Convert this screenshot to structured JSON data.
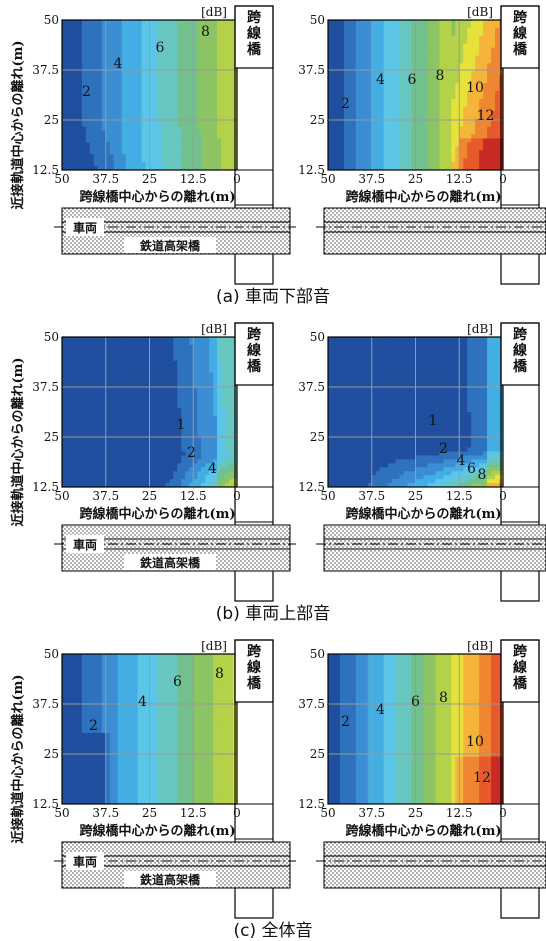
{
  "chart_data": {
    "type": "heatmap",
    "xlabel": "跨線橋中心からの離れ(m)",
    "ylabel": "近接軌道中心からの離れ(m)",
    "unit": "[dB]",
    "xticks": [
      "50",
      "37.5",
      "25",
      "12.5",
      "0"
    ],
    "yticks": [
      "50",
      "37.5",
      "25",
      "12.5"
    ],
    "xlim": [
      50,
      0
    ],
    "ylim": [
      12.5,
      50
    ],
    "bridge_label": [
      "跨",
      "線",
      "橋"
    ],
    "vehicle_label": "車両",
    "viaduct_label": "鉄道高架橋",
    "levels": [
      0,
      1,
      2,
      3,
      4,
      5,
      6,
      7,
      8,
      9,
      10,
      11,
      12,
      13
    ],
    "colors": [
      "#1f4f9e",
      "#2e72bd",
      "#3b8ed3",
      "#43aee3",
      "#5cc6e8",
      "#67c7c0",
      "#73c08f",
      "#8cc464",
      "#b3d24a",
      "#e7e23a",
      "#f4b53a",
      "#ef8732",
      "#e65a2b",
      "#c92a25"
    ],
    "groups": [
      {
        "caption": "(a) 車両下部音",
        "panels": [
          {
            "side": "left",
            "contours": [
              {
                "label": "2",
                "x": 43,
                "y": 31
              },
              {
                "label": "4",
                "x": 34,
                "y": 38
              },
              {
                "label": "6",
                "x": 22,
                "y": 42
              },
              {
                "label": "8",
                "x": 9,
                "y": 46
              }
            ]
          },
          {
            "side": "right",
            "contours": [
              {
                "label": "2",
                "x": 45,
                "y": 28
              },
              {
                "label": "4",
                "x": 35,
                "y": 34
              },
              {
                "label": "6",
                "x": 26,
                "y": 34
              },
              {
                "label": "8",
                "x": 18,
                "y": 35
              },
              {
                "label": "10",
                "x": 8,
                "y": 32
              },
              {
                "label": "12",
                "x": 5,
                "y": 25
              }
            ]
          }
        ]
      },
      {
        "caption": "(b) 車両上部音",
        "panels": [
          {
            "side": "left",
            "contours": [
              {
                "label": "1",
                "x": 16,
                "y": 27
              },
              {
                "label": "2",
                "x": 13,
                "y": 20
              },
              {
                "label": "4",
                "x": 7,
                "y": 16
              }
            ]
          },
          {
            "side": "right",
            "contours": [
              {
                "label": "1",
                "x": 20,
                "y": 28
              },
              {
                "label": "2",
                "x": 17,
                "y": 21
              },
              {
                "label": "4",
                "x": 12,
                "y": 18
              },
              {
                "label": "6",
                "x": 9,
                "y": 16
              },
              {
                "label": "8",
                "x": 6,
                "y": 14.5
              }
            ]
          }
        ]
      },
      {
        "caption": "(c) 全体音",
        "panels": [
          {
            "side": "left",
            "contours": [
              {
                "label": "2",
                "x": 41,
                "y": 31
              },
              {
                "label": "4",
                "x": 27,
                "y": 37
              },
              {
                "label": "6",
                "x": 17,
                "y": 42
              },
              {
                "label": "8",
                "x": 5,
                "y": 44
              }
            ]
          },
          {
            "side": "right",
            "contours": [
              {
                "label": "2",
                "x": 45,
                "y": 32
              },
              {
                "label": "4",
                "x": 35,
                "y": 35
              },
              {
                "label": "6",
                "x": 25,
                "y": 37
              },
              {
                "label": "8",
                "x": 17,
                "y": 38
              },
              {
                "label": "10",
                "x": 8,
                "y": 27
              },
              {
                "label": "12",
                "x": 6,
                "y": 18
              }
            ]
          }
        ]
      }
    ]
  }
}
